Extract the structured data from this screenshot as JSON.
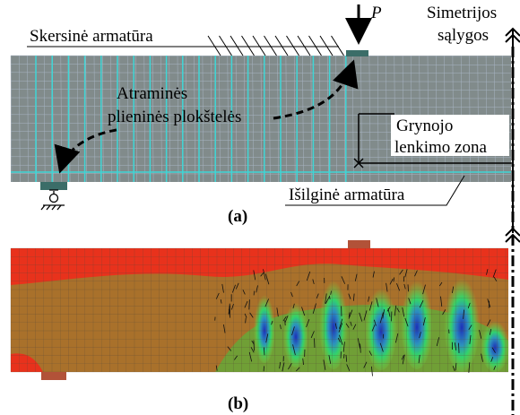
{
  "panel_a": {
    "label": "(a)",
    "transverse_rebar": "Skersinė armatūra",
    "load": "P",
    "symmetry": [
      "Simetrijos",
      "sąlygos"
    ],
    "plates": [
      "Atraminės",
      "plieninės plokštelės"
    ],
    "zone": [
      "Grynojo",
      "lenkimo zona"
    ],
    "longitudinal_rebar": "Išilginė armatūra"
  },
  "panel_b": {
    "label": "(b)"
  }
}
